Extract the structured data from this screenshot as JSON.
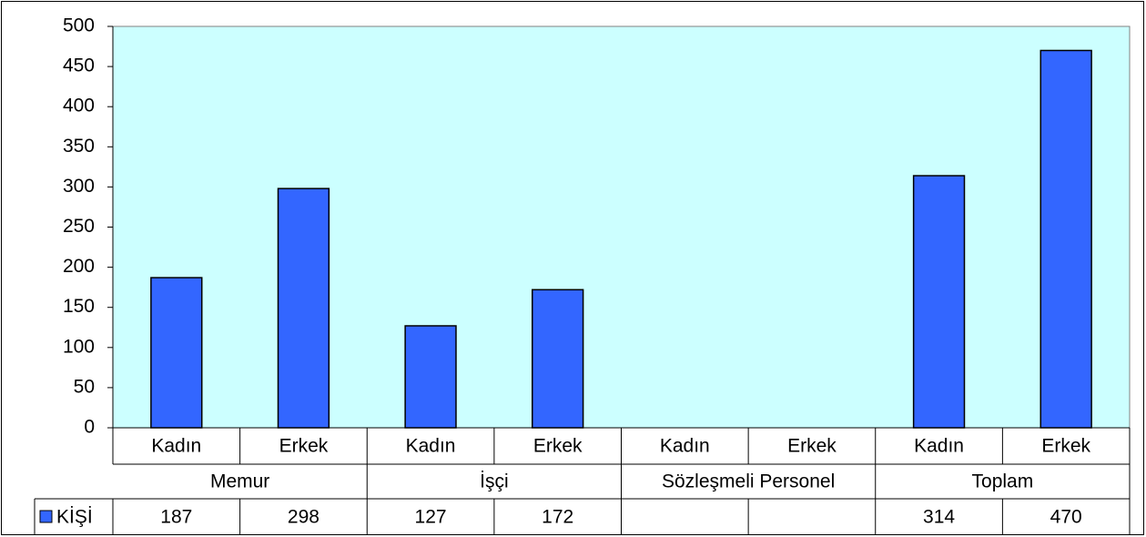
{
  "chart_data": {
    "type": "bar",
    "categories": [
      "Kadın",
      "Erkek",
      "Kadın",
      "Erkek",
      "Kadın",
      "Erkek",
      "Kadın",
      "Erkek"
    ],
    "groups": [
      "Memur",
      "İşçi",
      "Sözleşmeli Personel",
      "Toplam"
    ],
    "series": [
      {
        "name": "KİŞİ",
        "color": "#3366ff",
        "values": [
          187,
          298,
          127,
          172,
          null,
          null,
          314,
          470
        ]
      }
    ],
    "ylim": [
      0,
      500
    ],
    "yticks": [
      0,
      50,
      100,
      150,
      200,
      250,
      300,
      350,
      400,
      450,
      500
    ],
    "grid": false,
    "plot_background": "#ccffff",
    "data_table": true
  }
}
